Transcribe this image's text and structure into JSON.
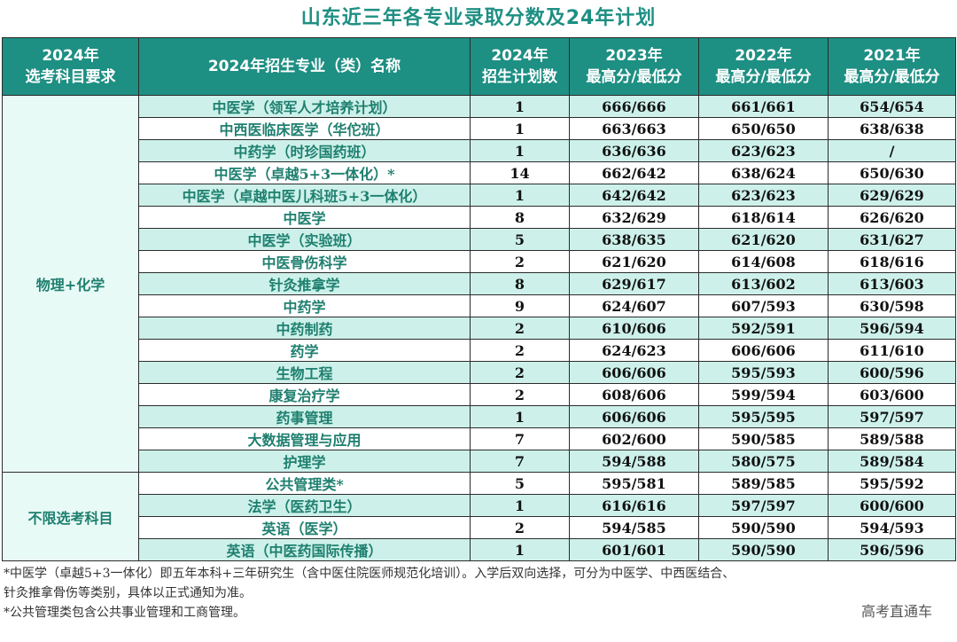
{
  "title": "山东近三年各专业录取分数及24年计划",
  "headers": {
    "subject_req": [
      "2024年",
      "选考科目要求"
    ],
    "major": "2024年招生专业（类）名称",
    "plan": [
      "2024年",
      "招生计划数"
    ],
    "y2023": [
      "2023年",
      "最高分/最低分"
    ],
    "y2022": [
      "2022年",
      "最高分/最低分"
    ],
    "y2021": [
      "2021年",
      "最高分/最低分"
    ]
  },
  "groups": [
    {
      "name": "物理+化学",
      "rows": [
        {
          "major": "中医学（领军人才培养计划）",
          "plan": "1",
          "y2023": "666/666",
          "y2022": "661/661",
          "y2021": "654/654"
        },
        {
          "major": "中西医临床医学（华佗班）",
          "plan": "1",
          "y2023": "663/663",
          "y2022": "650/650",
          "y2021": "638/638"
        },
        {
          "major": "中药学（时珍国药班）",
          "plan": "1",
          "y2023": "636/636",
          "y2022": "623/623",
          "y2021": "/"
        },
        {
          "major": "中医学（卓越5+3一体化）*",
          "plan": "14",
          "y2023": "662/642",
          "y2022": "638/624",
          "y2021": "650/630"
        },
        {
          "major": "中医学（卓越中医儿科班5+3一体化）",
          "plan": "1",
          "y2023": "642/642",
          "y2022": "623/623",
          "y2021": "629/629"
        },
        {
          "major": "中医学",
          "plan": "8",
          "y2023": "632/629",
          "y2022": "618/614",
          "y2021": "626/620"
        },
        {
          "major": "中医学（实验班）",
          "plan": "5",
          "y2023": "638/635",
          "y2022": "621/620",
          "y2021": "631/627"
        },
        {
          "major": "中医骨伤科学",
          "plan": "2",
          "y2023": "621/620",
          "y2022": "614/608",
          "y2021": "618/616"
        },
        {
          "major": "针灸推拿学",
          "plan": "8",
          "y2023": "629/617",
          "y2022": "613/602",
          "y2021": "613/603"
        },
        {
          "major": "中药学",
          "plan": "9",
          "y2023": "624/607",
          "y2022": "607/593",
          "y2021": "630/598"
        },
        {
          "major": "中药制药",
          "plan": "2",
          "y2023": "610/606",
          "y2022": "592/591",
          "y2021": "596/594"
        },
        {
          "major": "药学",
          "plan": "2",
          "y2023": "624/623",
          "y2022": "606/606",
          "y2021": "611/610"
        },
        {
          "major": "生物工程",
          "plan": "2",
          "y2023": "606/606",
          "y2022": "595/593",
          "y2021": "600/596"
        },
        {
          "major": "康复治疗学",
          "plan": "2",
          "y2023": "608/606",
          "y2022": "599/594",
          "y2021": "603/600"
        },
        {
          "major": "药事管理",
          "plan": "1",
          "y2023": "606/606",
          "y2022": "595/595",
          "y2021": "597/597"
        },
        {
          "major": "大数据管理与应用",
          "plan": "7",
          "y2023": "602/600",
          "y2022": "590/585",
          "y2021": "589/588"
        },
        {
          "major": "护理学",
          "plan": "7",
          "y2023": "594/588",
          "y2022": "580/575",
          "y2021": "589/584"
        }
      ]
    },
    {
      "name": "不限选考科目",
      "rows": [
        {
          "major": "公共管理类*",
          "plan": "5",
          "y2023": "595/581",
          "y2022": "589/585",
          "y2021": "595/592"
        },
        {
          "major": "法学（医药卫生）",
          "plan": "1",
          "y2023": "616/616",
          "y2022": "597/597",
          "y2021": "600/600"
        },
        {
          "major": "英语（医学）",
          "plan": "2",
          "y2023": "594/585",
          "y2022": "590/590",
          "y2021": "594/593"
        },
        {
          "major": "英语（中医药国际传播）",
          "plan": "1",
          "y2023": "601/601",
          "y2022": "590/590",
          "y2021": "596/596"
        }
      ]
    }
  ],
  "notes": [
    "*中医学（卓越5+3一体化）即五年本科+三年研究生（含中医住院医师规范化培训）。入学后双向选择，可分为中医学、中西医结合、",
    "针灸推拿骨伤等类别，具体以正式通知为准。",
    "*公共管理类包含公共事业管理和工商管理。"
  ],
  "watermark": "高考直通车"
}
